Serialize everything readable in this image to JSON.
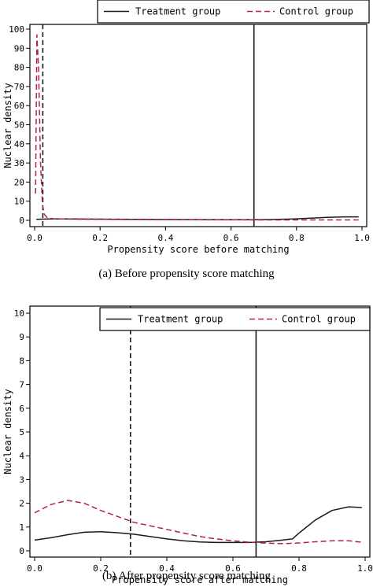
{
  "legend_treatment": "Treatment group",
  "legend_control": "Control group",
  "colors": {
    "treatment": "#1a1a1a",
    "control": "#b22245",
    "axis": "#000000"
  },
  "chart_data": [
    {
      "type": "line",
      "caption": "(a) Before propensity score matching",
      "xlabel": "Propensity score before matching",
      "ylabel": "Nuclear density",
      "xlim": [
        0,
        1
      ],
      "ylim": [
        0,
        100
      ],
      "xticks": [
        "0.0",
        "0.2",
        "0.4",
        "0.6",
        "0.8",
        "1.0"
      ],
      "yticks": [
        "0",
        "10",
        "20",
        "30",
        "40",
        "50",
        "60",
        "70",
        "80",
        "90",
        "100"
      ],
      "legend": "top",
      "vlines": [
        {
          "x": 0.025,
          "style": "dashed",
          "color": "#1a1a1a"
        },
        {
          "x": 0.67,
          "style": "solid",
          "color": "#1a1a1a"
        }
      ],
      "series": [
        {
          "name": "Treatment group",
          "style": "solid",
          "x": [
            0.005,
            0.02,
            0.05,
            0.1,
            0.2,
            0.3,
            0.4,
            0.5,
            0.6,
            0.67,
            0.75,
            0.8,
            0.85,
            0.9,
            0.95,
            0.99
          ],
          "y": [
            0.5,
            0.6,
            0.7,
            0.7,
            0.6,
            0.5,
            0.4,
            0.35,
            0.3,
            0.3,
            0.5,
            0.8,
            1.2,
            1.6,
            1.8,
            1.8
          ]
        },
        {
          "name": "Control group",
          "style": "dashed",
          "x": [
            0.003,
            0.007,
            0.012,
            0.018,
            0.024,
            0.03,
            0.04,
            0.06,
            0.1,
            0.3,
            0.5,
            0.7,
            0.9,
            0.99
          ],
          "y": [
            14,
            97,
            80,
            30,
            8,
            3,
            1.2,
            0.8,
            0.6,
            0.4,
            0.3,
            0.2,
            0.2,
            0.2
          ]
        }
      ]
    },
    {
      "type": "line",
      "caption": "(b) After propensity score matching",
      "xlabel": "Propensity score after matching",
      "ylabel": "Nuclear density",
      "xlim": [
        0,
        1
      ],
      "ylim": [
        0,
        10
      ],
      "xticks": [
        "0.0",
        "0.2",
        "0.4",
        "0.6",
        "0.8",
        "1.0"
      ],
      "yticks": [
        "0",
        "1",
        "2",
        "3",
        "4",
        "5",
        "6",
        "7",
        "8",
        "9",
        "10"
      ],
      "legend": "top",
      "vlines": [
        {
          "x": 0.29,
          "style": "dashed",
          "color": "#1a1a1a"
        },
        {
          "x": 0.67,
          "style": "solid",
          "color": "#1a1a1a"
        }
      ],
      "series": [
        {
          "name": "Treatment group",
          "style": "solid",
          "x": [
            0.0,
            0.05,
            0.1,
            0.15,
            0.2,
            0.25,
            0.3,
            0.35,
            0.4,
            0.45,
            0.5,
            0.55,
            0.6,
            0.65,
            0.7,
            0.75,
            0.78,
            0.8,
            0.85,
            0.9,
            0.95,
            0.99
          ],
          "y": [
            0.45,
            0.55,
            0.68,
            0.78,
            0.8,
            0.76,
            0.7,
            0.6,
            0.5,
            0.42,
            0.37,
            0.35,
            0.35,
            0.35,
            0.38,
            0.45,
            0.5,
            0.75,
            1.3,
            1.7,
            1.85,
            1.82
          ]
        },
        {
          "name": "Control group",
          "style": "dashed",
          "x": [
            0.0,
            0.05,
            0.1,
            0.15,
            0.2,
            0.25,
            0.3,
            0.35,
            0.4,
            0.45,
            0.5,
            0.55,
            0.6,
            0.65,
            0.7,
            0.75,
            0.8,
            0.85,
            0.9,
            0.95,
            0.99
          ],
          "y": [
            1.6,
            1.95,
            2.12,
            2.0,
            1.7,
            1.45,
            1.2,
            1.05,
            0.9,
            0.75,
            0.6,
            0.5,
            0.42,
            0.36,
            0.32,
            0.3,
            0.33,
            0.38,
            0.42,
            0.42,
            0.36
          ]
        }
      ]
    }
  ]
}
